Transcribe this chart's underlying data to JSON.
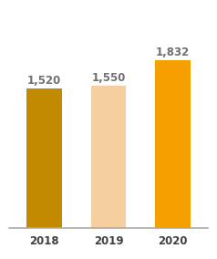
{
  "categories": [
    "2018",
    "2019",
    "2020"
  ],
  "values": [
    1520,
    1550,
    1832
  ],
  "bar_colors": [
    "#C28A00",
    "#F5CFA0",
    "#F5A000"
  ],
  "labels": [
    "1,520",
    "1,550",
    "1,832"
  ],
  "label_color": "#707070",
  "label_fontsize": 8.5,
  "xlabel_fontsize": 8.5,
  "xlabel_color": "#404040",
  "ylim": [
    0,
    2150
  ],
  "bar_width": 0.55,
  "background_color": "#ffffff"
}
